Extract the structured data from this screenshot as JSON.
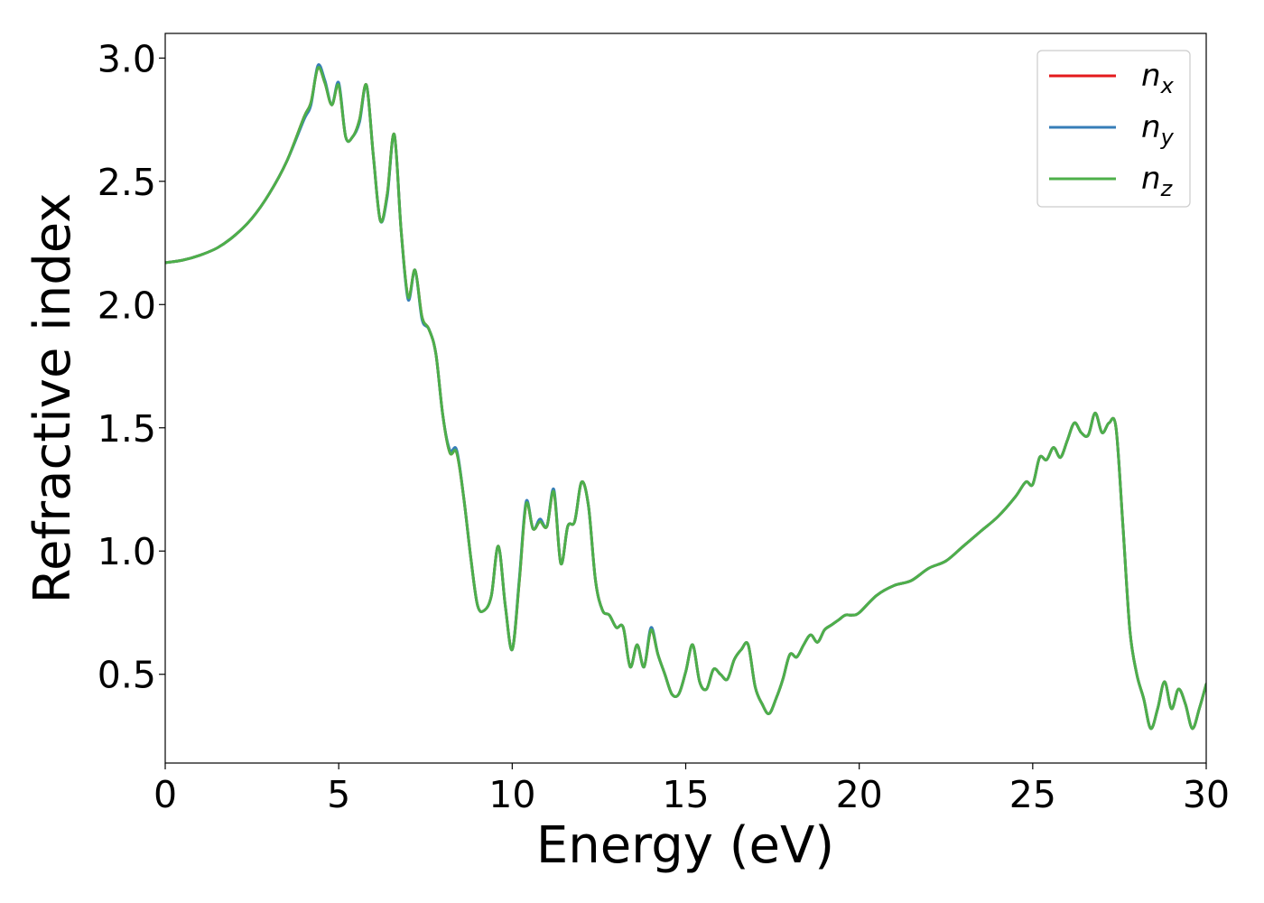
{
  "chart_data": {
    "type": "line",
    "xlabel": "Energy (eV)",
    "ylabel": "Refractive index",
    "xlim": [
      0,
      30
    ],
    "ylim": [
      0.14,
      3.1
    ],
    "xticks": [
      0,
      5,
      10,
      15,
      20,
      25,
      30
    ],
    "xtick_labels": [
      "0",
      "5",
      "10",
      "15",
      "20",
      "25",
      "30"
    ],
    "yticks": [
      0.5,
      1.0,
      1.5,
      2.0,
      2.5,
      3.0
    ],
    "ytick_labels": [
      "0.5",
      "1.0",
      "1.5",
      "2.0",
      "2.5",
      "3.0"
    ],
    "grid": false,
    "legend_position": "top-right",
    "x": [
      0,
      0.5,
      1,
      1.5,
      2,
      2.5,
      3,
      3.5,
      4,
      4.2,
      4.4,
      4.6,
      4.8,
      5.0,
      5.2,
      5.4,
      5.6,
      5.8,
      6.0,
      6.2,
      6.4,
      6.6,
      6.8,
      7.0,
      7.2,
      7.4,
      7.6,
      7.8,
      8.0,
      8.2,
      8.4,
      8.6,
      8.8,
      9.0,
      9.2,
      9.4,
      9.6,
      9.8,
      10.0,
      10.2,
      10.4,
      10.6,
      10.8,
      11.0,
      11.2,
      11.4,
      11.6,
      11.8,
      12.0,
      12.2,
      12.4,
      12.6,
      12.8,
      13.0,
      13.2,
      13.4,
      13.6,
      13.8,
      14.0,
      14.2,
      14.4,
      14.6,
      14.8,
      15.0,
      15.2,
      15.4,
      15.6,
      15.8,
      16.0,
      16.2,
      16.4,
      16.6,
      16.8,
      17.0,
      17.2,
      17.4,
      17.6,
      17.8,
      18.0,
      18.2,
      18.4,
      18.6,
      18.8,
      19.0,
      19.2,
      19.4,
      19.6,
      19.8,
      20.0,
      20.5,
      21.0,
      21.5,
      22.0,
      22.5,
      23.0,
      23.5,
      24.0,
      24.5,
      24.8,
      25.0,
      25.2,
      25.4,
      25.6,
      25.8,
      26.0,
      26.2,
      26.4,
      26.6,
      26.8,
      27.0,
      27.2,
      27.4,
      27.6,
      27.8,
      28.0,
      28.2,
      28.4,
      28.6,
      28.8,
      29.0,
      29.2,
      29.4,
      29.6,
      29.8,
      30.0
    ],
    "series": [
      {
        "name": "n_x",
        "label_base": "n",
        "label_sub": "x",
        "color": "#e41a1c",
        "values": [
          2.17,
          2.18,
          2.2,
          2.23,
          2.28,
          2.35,
          2.45,
          2.58,
          2.76,
          2.82,
          2.96,
          2.9,
          2.81,
          2.89,
          2.68,
          2.68,
          2.75,
          2.89,
          2.6,
          2.34,
          2.45,
          2.69,
          2.3,
          2.03,
          2.14,
          1.95,
          1.9,
          1.8,
          1.55,
          1.4,
          1.4,
          1.22,
          0.98,
          0.78,
          0.76,
          0.82,
          1.02,
          0.78,
          0.6,
          0.87,
          1.19,
          1.09,
          1.12,
          1.1,
          1.24,
          0.95,
          1.1,
          1.12,
          1.28,
          1.18,
          0.88,
          0.76,
          0.74,
          0.69,
          0.69,
          0.53,
          0.62,
          0.53,
          0.68,
          0.58,
          0.5,
          0.42,
          0.42,
          0.51,
          0.62,
          0.47,
          0.44,
          0.52,
          0.5,
          0.48,
          0.56,
          0.6,
          0.62,
          0.45,
          0.38,
          0.34,
          0.4,
          0.48,
          0.58,
          0.57,
          0.62,
          0.66,
          0.63,
          0.68,
          0.7,
          0.72,
          0.74,
          0.74,
          0.75,
          0.82,
          0.86,
          0.88,
          0.93,
          0.96,
          1.02,
          1.08,
          1.14,
          1.22,
          1.28,
          1.27,
          1.38,
          1.37,
          1.42,
          1.38,
          1.45,
          1.52,
          1.48,
          1.47,
          1.56,
          1.48,
          1.52,
          1.5,
          1.1,
          0.68,
          0.5,
          0.4,
          0.28,
          0.36,
          0.47,
          0.36,
          0.44,
          0.38,
          0.28,
          0.36,
          0.46
        ]
      },
      {
        "name": "n_y",
        "label_base": "n",
        "label_sub": "y",
        "color": "#377eb8",
        "values": [
          2.17,
          2.18,
          2.2,
          2.23,
          2.28,
          2.35,
          2.45,
          2.58,
          2.75,
          2.81,
          2.97,
          2.91,
          2.81,
          2.9,
          2.68,
          2.68,
          2.74,
          2.89,
          2.6,
          2.34,
          2.44,
          2.69,
          2.3,
          2.02,
          2.14,
          1.94,
          1.9,
          1.8,
          1.55,
          1.41,
          1.41,
          1.22,
          0.98,
          0.78,
          0.76,
          0.82,
          1.02,
          0.78,
          0.6,
          0.88,
          1.2,
          1.09,
          1.13,
          1.1,
          1.25,
          0.95,
          1.1,
          1.12,
          1.28,
          1.18,
          0.88,
          0.76,
          0.74,
          0.69,
          0.69,
          0.53,
          0.62,
          0.53,
          0.69,
          0.58,
          0.5,
          0.42,
          0.42,
          0.51,
          0.62,
          0.47,
          0.44,
          0.52,
          0.5,
          0.48,
          0.56,
          0.6,
          0.62,
          0.45,
          0.38,
          0.34,
          0.4,
          0.48,
          0.58,
          0.57,
          0.62,
          0.66,
          0.63,
          0.68,
          0.7,
          0.72,
          0.74,
          0.74,
          0.75,
          0.82,
          0.86,
          0.88,
          0.93,
          0.96,
          1.02,
          1.08,
          1.14,
          1.22,
          1.28,
          1.27,
          1.38,
          1.37,
          1.42,
          1.38,
          1.45,
          1.52,
          1.48,
          1.47,
          1.56,
          1.48,
          1.52,
          1.5,
          1.1,
          0.68,
          0.5,
          0.4,
          0.28,
          0.36,
          0.47,
          0.36,
          0.44,
          0.38,
          0.28,
          0.36,
          0.46
        ]
      },
      {
        "name": "n_z",
        "label_base": "n",
        "label_sub": "z",
        "color": "#4daf4a",
        "values": [
          2.17,
          2.18,
          2.2,
          2.23,
          2.28,
          2.35,
          2.45,
          2.58,
          2.76,
          2.82,
          2.96,
          2.9,
          2.81,
          2.89,
          2.68,
          2.68,
          2.75,
          2.89,
          2.6,
          2.34,
          2.45,
          2.69,
          2.3,
          2.03,
          2.14,
          1.95,
          1.9,
          1.8,
          1.55,
          1.4,
          1.4,
          1.22,
          0.98,
          0.78,
          0.76,
          0.82,
          1.02,
          0.78,
          0.6,
          0.87,
          1.19,
          1.09,
          1.12,
          1.1,
          1.24,
          0.95,
          1.1,
          1.12,
          1.28,
          1.18,
          0.88,
          0.76,
          0.74,
          0.69,
          0.69,
          0.53,
          0.62,
          0.53,
          0.68,
          0.58,
          0.5,
          0.42,
          0.42,
          0.51,
          0.62,
          0.47,
          0.44,
          0.52,
          0.5,
          0.48,
          0.56,
          0.6,
          0.62,
          0.45,
          0.38,
          0.34,
          0.4,
          0.48,
          0.58,
          0.57,
          0.62,
          0.66,
          0.63,
          0.68,
          0.7,
          0.72,
          0.74,
          0.74,
          0.75,
          0.82,
          0.86,
          0.88,
          0.93,
          0.96,
          1.02,
          1.08,
          1.14,
          1.22,
          1.28,
          1.27,
          1.38,
          1.37,
          1.42,
          1.38,
          1.45,
          1.52,
          1.48,
          1.47,
          1.56,
          1.48,
          1.52,
          1.5,
          1.1,
          0.68,
          0.5,
          0.4,
          0.28,
          0.36,
          0.47,
          0.36,
          0.44,
          0.38,
          0.28,
          0.36,
          0.46
        ]
      }
    ]
  }
}
